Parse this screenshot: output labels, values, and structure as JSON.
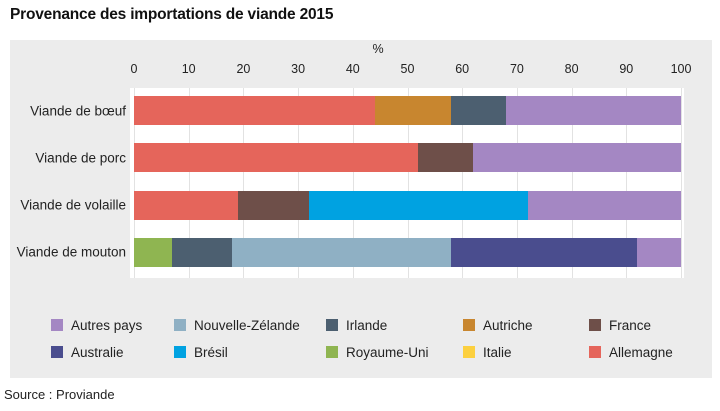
{
  "title": "Provenance des importations de viande 2015",
  "axis_unit_label": "%",
  "source": "Source : Proviande",
  "colors": {
    "panel_bg": "#ececec",
    "plot_bg": "#ffffff",
    "gridline": "#e2e2e2",
    "text": "#1a1a1a"
  },
  "chart_data": {
    "type": "bar",
    "orientation": "horizontal",
    "stacked": true,
    "title": "Provenance des importations de viande 2015",
    "xlabel": "%",
    "xlim": [
      0,
      100
    ],
    "xticks": [
      0,
      10,
      20,
      30,
      40,
      50,
      60,
      70,
      80,
      90,
      100
    ],
    "grid": true,
    "legend_position": "bottom",
    "categories": [
      "Viande de bœuf",
      "Viande de porc",
      "Viande de volaille",
      "Viande de mouton"
    ],
    "bars": [
      {
        "category": "Viande de bœuf",
        "segments": [
          {
            "name": "Allemagne",
            "value": 44
          },
          {
            "name": "Autriche",
            "value": 14
          },
          {
            "name": "Irlande",
            "value": 10
          },
          {
            "name": "Autres pays",
            "value": 32
          }
        ]
      },
      {
        "category": "Viande de porc",
        "segments": [
          {
            "name": "Allemagne",
            "value": 52
          },
          {
            "name": "France",
            "value": 10
          },
          {
            "name": "Autres pays",
            "value": 38
          }
        ]
      },
      {
        "category": "Viande de volaille",
        "segments": [
          {
            "name": "Allemagne",
            "value": 19
          },
          {
            "name": "France",
            "value": 13
          },
          {
            "name": "Brésil",
            "value": 40
          },
          {
            "name": "Autres pays",
            "value": 28
          }
        ]
      },
      {
        "category": "Viande de mouton",
        "segments": [
          {
            "name": "Royaume-Uni",
            "value": 7
          },
          {
            "name": "Irlande",
            "value": 11
          },
          {
            "name": "Nouvelle-Zélande",
            "value": 40
          },
          {
            "name": "Australie",
            "value": 34
          },
          {
            "name": "Autres pays",
            "value": 8
          }
        ]
      }
    ],
    "series_colors": {
      "Autres pays": "#a487c3",
      "Nouvelle-Zélande": "#8fb0c4",
      "Irlande": "#4c5f70",
      "Autriche": "#c8862f",
      "France": "#6e4f49",
      "Australie": "#4a4d8e",
      "Brésil": "#00a2e1",
      "Royaume-Uni": "#8fb551",
      "Italie": "#fcd03f",
      "Allemagne": "#e5655b"
    },
    "legend_rows": [
      [
        "Autres pays",
        "Nouvelle-Zélande",
        "Irlande",
        "Autriche",
        "France"
      ],
      [
        "Australie",
        "Brésil",
        "Royaume-Uni",
        "Italie",
        "Allemagne"
      ]
    ]
  }
}
